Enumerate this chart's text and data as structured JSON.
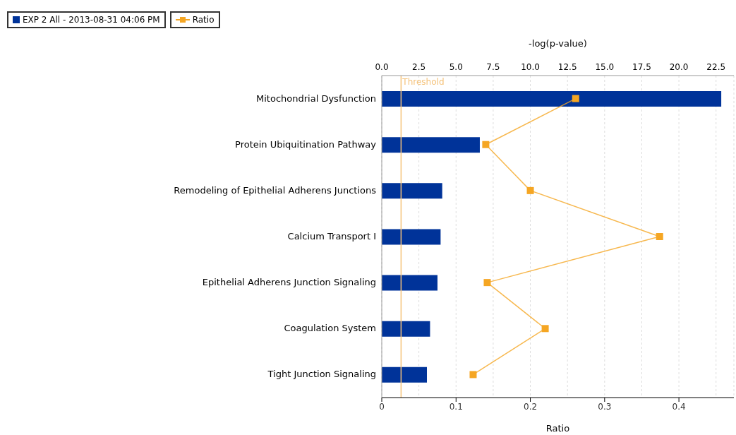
{
  "chart_data": {
    "type": "bar",
    "orientation": "horizontal",
    "categories": [
      "Mitochondrial Dysfunction",
      "Protein Ubiquitination Pathway",
      "Remodeling of Epithelial Adherens Junctions",
      "Calcium Transport I",
      "Epithelial Adherens Junction Signaling",
      "Coagulation System",
      "Tight Junction Signaling"
    ],
    "series": [
      {
        "name": "EXP 2 All - 2013-08-31 04:06 PM",
        "color": "#003399",
        "axis": "x2",
        "values": [
          22.85,
          6.6,
          4.07,
          3.96,
          3.75,
          3.25,
          3.04
        ]
      },
      {
        "name": "Ratio",
        "type": "line",
        "color": "#f5a623",
        "marker": "square",
        "values": [
          0.261,
          0.14,
          0.2,
          0.374,
          0.142,
          0.22,
          0.123
        ]
      }
    ],
    "xlabel": "Ratio",
    "xlim": [
      0,
      0.474
    ],
    "xticks": [
      0,
      0.1,
      0.2,
      0.3,
      0.4
    ],
    "x2label": "-log(p-value)",
    "x2lim": [
      0,
      23.7
    ],
    "x2ticks": [
      {
        "value": 0,
        "label": "0.0"
      },
      {
        "value": 2.5,
        "label": "2.5"
      },
      {
        "value": 5,
        "label": "5.0"
      },
      {
        "value": 7.5,
        "label": "7.5"
      },
      {
        "value": 10,
        "label": "10.0"
      },
      {
        "value": 12.5,
        "label": "12.5"
      },
      {
        "value": 15,
        "label": "15.0"
      },
      {
        "value": 17.5,
        "label": "17.5"
      },
      {
        "value": 20,
        "label": "20.0"
      },
      {
        "value": 22.5,
        "label": "22.5"
      }
    ],
    "ref_lines": [
      {
        "axis": "x2",
        "value": 1.3,
        "label": "Threshold",
        "color": "#f5c27a"
      }
    ],
    "grid": "x",
    "legend": "top left"
  }
}
